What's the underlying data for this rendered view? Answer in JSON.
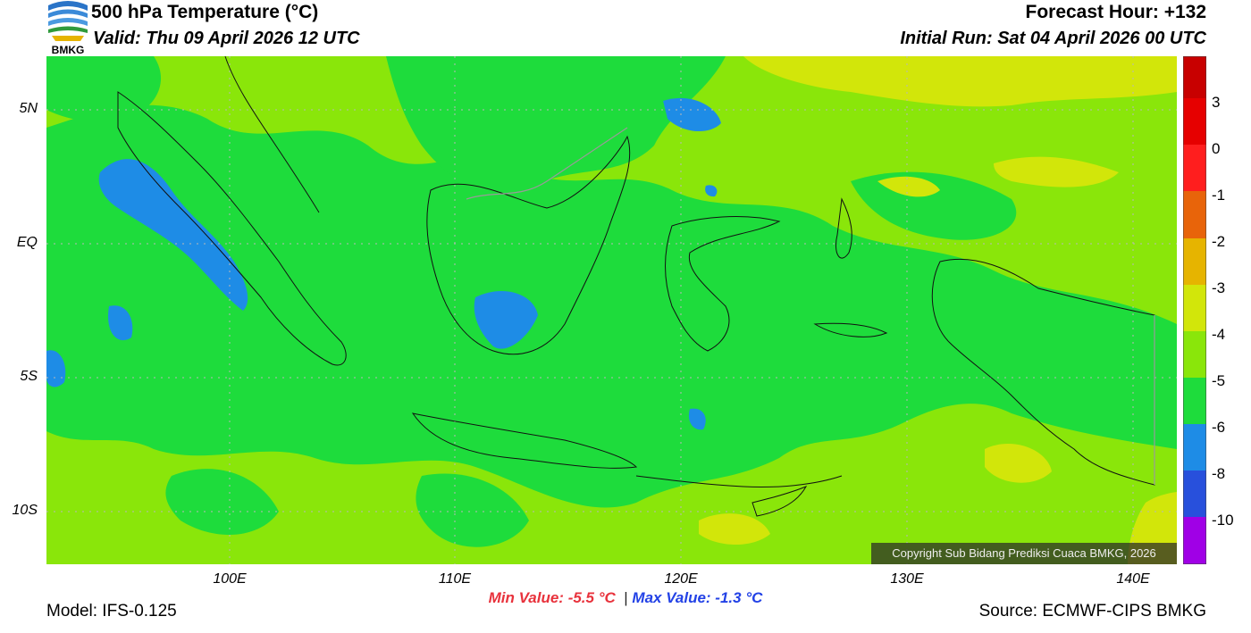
{
  "header": {
    "title": "500 hPa Temperature (°C)",
    "valid": "Valid: Thu 09 April 2026 12 UTC",
    "forecast_hour": "Forecast Hour: +132",
    "initial_run": "Initial Run: Sat 04 April 2026 00 UTC",
    "logo_text": "BMKG"
  },
  "map": {
    "lat_labels": [
      "5N",
      "EQ",
      "5S",
      "10S"
    ],
    "lon_labels": [
      "100E",
      "110E",
      "120E",
      "130E",
      "140E"
    ],
    "lat_values": [
      5,
      0,
      -5,
      -10
    ],
    "lon_values": [
      100,
      110,
      120,
      130,
      140
    ],
    "lon_range": [
      92,
      142
    ],
    "lat_range": [
      -12,
      7
    ],
    "copyright": "Copyright Sub Bidang Prediksi Cuaca BMKG, 2026",
    "base_color": "#8ae60a"
  },
  "colorbar": {
    "labels": [
      "3",
      "0",
      "-1",
      "-2",
      "-3",
      "-4",
      "-5",
      "-6",
      "-8",
      "-10"
    ],
    "colors": [
      "#c80000",
      "#e60000",
      "#ff1e1e",
      "#e8640a",
      "#e6b400",
      "#d2e60a",
      "#8ae60a",
      "#1edc3c",
      "#1e8ce6",
      "#2850dc",
      "#a000e6",
      "#a0005a"
    ]
  },
  "stats": {
    "min": "Min Value: -5.5 °C",
    "separator": "|",
    "max": "Max Value: -1.3 °C"
  },
  "footer": {
    "model": "Model: IFS-0.125",
    "source": "Source: ECMWF-CIPS BMKG"
  }
}
